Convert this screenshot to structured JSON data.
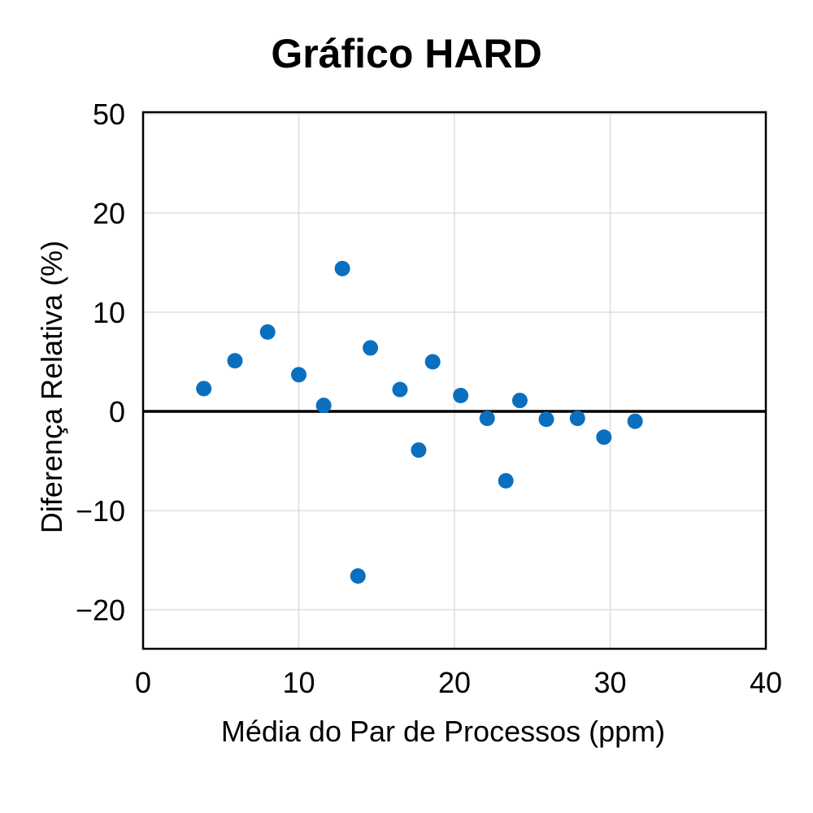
{
  "chart_data": {
    "type": "scatter",
    "title": "Gráfico HARD",
    "xlabel": "Média do Par de Processos (ppm)",
    "ylabel": "Diferença Relativa (%)",
    "xlim": [
      0,
      40
    ],
    "x_ticks": [
      0,
      10,
      20,
      30,
      40
    ],
    "x_tick_labels": [
      "0",
      "10",
      "20",
      "30",
      "40"
    ],
    "y_ticks": [
      50,
      20,
      10,
      0,
      -10,
      -20
    ],
    "y_tick_labels": [
      "50",
      "20",
      "10",
      "0",
      "−10",
      "−20"
    ],
    "grid": true,
    "reference_line": 0,
    "marker_color": "#0b6fbf",
    "series": [
      {
        "points": [
          {
            "x": 3.9,
            "y": 2.3
          },
          {
            "x": 5.9,
            "y": 5.1
          },
          {
            "x": 8.0,
            "y": 8.0
          },
          {
            "x": 10.0,
            "y": 3.7
          },
          {
            "x": 11.6,
            "y": 0.6
          },
          {
            "x": 12.8,
            "y": 14.4
          },
          {
            "x": 13.8,
            "y": -16.6
          },
          {
            "x": 14.6,
            "y": 6.4
          },
          {
            "x": 16.5,
            "y": 2.2
          },
          {
            "x": 17.7,
            "y": -3.9
          },
          {
            "x": 18.6,
            "y": 5.0
          },
          {
            "x": 20.4,
            "y": 1.6
          },
          {
            "x": 22.1,
            "y": -0.7
          },
          {
            "x": 23.3,
            "y": -7.0
          },
          {
            "x": 24.2,
            "y": 1.1
          },
          {
            "x": 25.9,
            "y": -0.8
          },
          {
            "x": 27.9,
            "y": -0.7
          },
          {
            "x": 29.6,
            "y": -2.6
          },
          {
            "x": 31.6,
            "y": -1.0
          }
        ]
      }
    ]
  }
}
